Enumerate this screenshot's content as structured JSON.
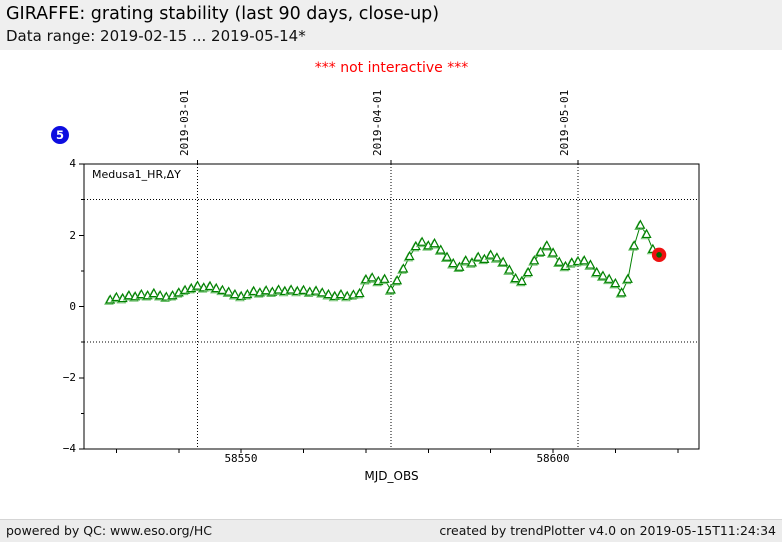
{
  "header": {
    "title": "GIRAFFE: grating stability (last 90 days, close-up)",
    "subtitle": "Data range: 2019-02-15 ... 2019-05-14*"
  },
  "warning": "*** not interactive ***",
  "badge": {
    "label": "5",
    "color": "#0d0de0"
  },
  "legend": "Medusa1_HR,ΔY",
  "axes": {
    "xlabel": "MJD_OBS",
    "x_tick_labels": [
      "58550",
      "58600"
    ],
    "y_tick_labels": [
      "4",
      "2",
      "0",
      "−2",
      "−4"
    ],
    "date_labels": [
      "2019-03-01",
      "2019-04-01",
      "2019-05-01"
    ]
  },
  "footer": {
    "left": "powered by QC: www.eso.org/HC",
    "right": "created by trendPlotter v4.0 on 2019-05-15T11:24:34"
  },
  "chart_data": {
    "type": "line",
    "title": "GIRAFFE: grating stability (last 90 days, close-up)",
    "series_name": "Medusa1_HR,ΔY",
    "xlabel": "MJD_OBS",
    "xlim": [
      58524.8,
      58623.4
    ],
    "ylim": [
      -4,
      4
    ],
    "x_major_ticks": [
      58530,
      58540,
      58550,
      58560,
      58570,
      58580,
      58590,
      58600,
      58610,
      58620
    ],
    "x_labeled_ticks": [
      58550,
      58600
    ],
    "y_major_ticks": [
      -4,
      -2,
      0,
      2,
      4
    ],
    "y_minor_ticks": [
      -3,
      -1,
      1,
      3
    ],
    "threshold_lines_y": [
      3,
      -1
    ],
    "month_lines": [
      {
        "mjd": 58543,
        "label": "2019-03-01"
      },
      {
        "mjd": 58574,
        "label": "2019-04-01"
      },
      {
        "mjd": 58604,
        "label": "2019-05-01"
      }
    ],
    "line_color": "#008000",
    "marker": "open-triangle-up",
    "marker_shadow_color": "#6abf69",
    "highlight_last": {
      "color": "#ee1111",
      "inner": "#006600"
    },
    "points": [
      [
        58529,
        0.18
      ],
      [
        58530,
        0.25
      ],
      [
        58531,
        0.22
      ],
      [
        58532,
        0.3
      ],
      [
        58533,
        0.27
      ],
      [
        58534,
        0.33
      ],
      [
        58535,
        0.3
      ],
      [
        58536,
        0.36
      ],
      [
        58537,
        0.3
      ],
      [
        58538,
        0.26
      ],
      [
        58539,
        0.3
      ],
      [
        58540,
        0.38
      ],
      [
        58541,
        0.45
      ],
      [
        58542,
        0.5
      ],
      [
        58543,
        0.57
      ],
      [
        58544,
        0.52
      ],
      [
        58545,
        0.56
      ],
      [
        58546,
        0.5
      ],
      [
        58547,
        0.45
      ],
      [
        58548,
        0.4
      ],
      [
        58549,
        0.33
      ],
      [
        58550,
        0.28
      ],
      [
        58551,
        0.33
      ],
      [
        58552,
        0.42
      ],
      [
        58553,
        0.38
      ],
      [
        58554,
        0.44
      ],
      [
        58555,
        0.4
      ],
      [
        58556,
        0.46
      ],
      [
        58557,
        0.42
      ],
      [
        58558,
        0.46
      ],
      [
        58559,
        0.42
      ],
      [
        58560,
        0.45
      ],
      [
        58561,
        0.4
      ],
      [
        58562,
        0.43
      ],
      [
        58563,
        0.38
      ],
      [
        58564,
        0.33
      ],
      [
        58565,
        0.28
      ],
      [
        58566,
        0.33
      ],
      [
        58567,
        0.28
      ],
      [
        58568,
        0.32
      ],
      [
        58569,
        0.36
      ],
      [
        58570,
        0.75
      ],
      [
        58571,
        0.8
      ],
      [
        58572,
        0.7
      ],
      [
        58573,
        0.76
      ],
      [
        58574,
        0.46
      ],
      [
        58575,
        0.72
      ],
      [
        58576,
        1.05
      ],
      [
        58577,
        1.4
      ],
      [
        58578,
        1.68
      ],
      [
        58579,
        1.8
      ],
      [
        58580,
        1.7
      ],
      [
        58581,
        1.76
      ],
      [
        58582,
        1.58
      ],
      [
        58583,
        1.38
      ],
      [
        58584,
        1.2
      ],
      [
        58585,
        1.1
      ],
      [
        58586,
        1.28
      ],
      [
        58587,
        1.22
      ],
      [
        58588,
        1.38
      ],
      [
        58589,
        1.32
      ],
      [
        58590,
        1.44
      ],
      [
        58591,
        1.36
      ],
      [
        58592,
        1.24
      ],
      [
        58593,
        1.02
      ],
      [
        58594,
        0.78
      ],
      [
        58595,
        0.7
      ],
      [
        58596,
        0.95
      ],
      [
        58597,
        1.28
      ],
      [
        58598,
        1.52
      ],
      [
        58599,
        1.7
      ],
      [
        58600,
        1.5
      ],
      [
        58601,
        1.24
      ],
      [
        58602,
        1.12
      ],
      [
        58603,
        1.22
      ],
      [
        58604,
        1.26
      ],
      [
        58605,
        1.28
      ],
      [
        58606,
        1.16
      ],
      [
        58607,
        0.95
      ],
      [
        58608,
        0.85
      ],
      [
        58609,
        0.76
      ],
      [
        58610,
        0.64
      ],
      [
        58611,
        0.38
      ],
      [
        58612,
        0.76
      ],
      [
        58613,
        1.7
      ],
      [
        58614,
        2.28
      ],
      [
        58615,
        2.02
      ],
      [
        58616,
        1.6
      ],
      [
        58617,
        1.45
      ]
    ]
  }
}
